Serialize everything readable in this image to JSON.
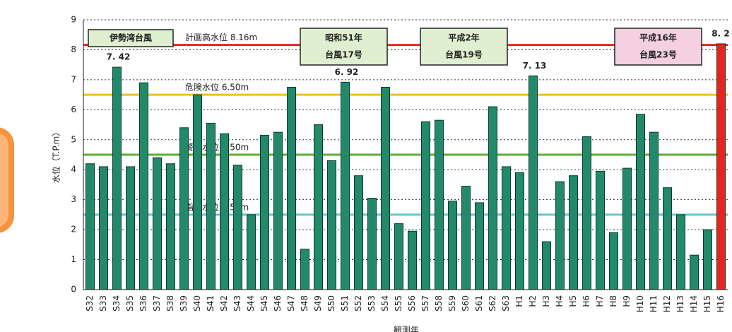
{
  "chart_data": {
    "type": "bar",
    "ylabel": "水位（T.P.m）",
    "xlabel": "観測年",
    "categories": [
      "S32",
      "S33",
      "S34",
      "S35",
      "S36",
      "S37",
      "S38",
      "S39",
      "S40",
      "S41",
      "S42",
      "S43",
      "S44",
      "S45",
      "S46",
      "S47",
      "S48",
      "S49",
      "S50",
      "S51",
      "S52",
      "S53",
      "S54",
      "S55",
      "S56",
      "S57",
      "S58",
      "S59",
      "S60",
      "S61",
      "S62",
      "S63",
      "H1",
      "H2",
      "H3",
      "H4",
      "H5",
      "H6",
      "H7",
      "H8",
      "H9",
      "H10",
      "H11",
      "H12",
      "H13",
      "H14",
      "H15",
      "H16"
    ],
    "values": [
      4.2,
      4.1,
      7.42,
      4.1,
      6.9,
      4.4,
      4.2,
      5.4,
      6.5,
      5.55,
      5.2,
      4.15,
      2.5,
      5.15,
      5.25,
      6.75,
      1.35,
      5.5,
      4.3,
      6.92,
      3.8,
      3.05,
      6.75,
      2.2,
      1.95,
      5.6,
      5.65,
      2.95,
      3.45,
      2.9,
      6.1,
      4.1,
      3.9,
      7.13,
      1.6,
      3.6,
      3.8,
      5.1,
      3.95,
      1.9,
      4.05,
      5.85,
      5.25,
      3.4,
      2.5,
      1.15,
      2.0,
      8.2
    ],
    "value_labels": [
      null,
      null,
      "7. 42",
      null,
      null,
      null,
      null,
      null,
      null,
      null,
      null,
      null,
      null,
      null,
      null,
      null,
      null,
      null,
      null,
      "6. 92",
      null,
      null,
      null,
      null,
      null,
      null,
      null,
      null,
      null,
      null,
      null,
      null,
      null,
      "7. 13",
      null,
      null,
      null,
      null,
      null,
      null,
      null,
      null,
      null,
      null,
      null,
      null,
      null,
      "8. 2"
    ],
    "color": "#23896b",
    "highlight_color": "#e8231e",
    "ylim": [
      0,
      9
    ],
    "yticks": [
      0,
      1,
      2,
      3,
      4,
      5,
      6,
      7,
      8,
      9
    ],
    "grid": true,
    "reference_lines": [
      {
        "value": 8.16,
        "label": "計画高水位 8.16m",
        "color": "#e8231e"
      },
      {
        "value": 6.5,
        "label": "危険水位 6.50m",
        "color": "#f0c020"
      },
      {
        "value": 4.5,
        "label": "警戒水位 4.50m",
        "color": "#5cb030"
      },
      {
        "value": 2.5,
        "label": "指定水位 2.50m",
        "color": "#60c8d0"
      }
    ],
    "annotations": [
      {
        "lines": [
          "伊勢湾台風"
        ]
      },
      {
        "lines": [
          "昭和51年",
          "台風17号"
        ]
      },
      {
        "lines": [
          "平成2年",
          "台風19号"
        ]
      },
      {
        "lines": [
          "平成16年",
          "台風23号"
        ]
      }
    ]
  }
}
